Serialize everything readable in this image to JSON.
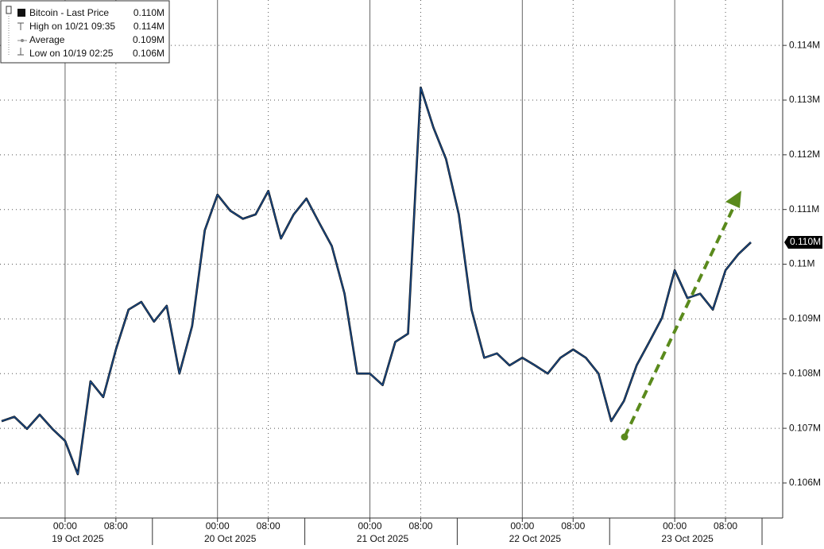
{
  "chart_data": {
    "type": "line",
    "legend": [
      {
        "label": "Bitcoin - Last Price",
        "value": "0.110M"
      },
      {
        "label": "High on 10/21 09:35",
        "value": "0.114M"
      },
      {
        "label": "Average",
        "value": "0.109M"
      },
      {
        "label": "Low on 10/19 02:25",
        "value": "0.106M"
      }
    ],
    "last_price_label": "0.110M",
    "x": [
      "2025-10-18T14:00",
      "2025-10-18T16:00",
      "2025-10-18T18:00",
      "2025-10-18T20:00",
      "2025-10-18T22:00",
      "2025-10-19T00:00",
      "2025-10-19T02:00",
      "2025-10-19T04:00",
      "2025-10-19T06:00",
      "2025-10-19T08:00",
      "2025-10-19T10:00",
      "2025-10-19T12:00",
      "2025-10-19T14:00",
      "2025-10-19T16:00",
      "2025-10-19T18:00",
      "2025-10-19T20:00",
      "2025-10-19T22:00",
      "2025-10-20T00:00",
      "2025-10-20T02:00",
      "2025-10-20T04:00",
      "2025-10-20T06:00",
      "2025-10-20T08:00",
      "2025-10-20T10:00",
      "2025-10-20T12:00",
      "2025-10-20T14:00",
      "2025-10-20T16:00",
      "2025-10-20T18:00",
      "2025-10-20T20:00",
      "2025-10-20T22:00",
      "2025-10-21T00:00",
      "2025-10-21T02:00",
      "2025-10-21T04:00",
      "2025-10-21T06:00",
      "2025-10-21T08:00",
      "2025-10-21T10:00",
      "2025-10-21T12:00",
      "2025-10-21T14:00",
      "2025-10-21T16:00",
      "2025-10-21T18:00",
      "2025-10-21T20:00",
      "2025-10-21T22:00",
      "2025-10-22T00:00",
      "2025-10-22T02:00",
      "2025-10-22T04:00",
      "2025-10-22T06:00",
      "2025-10-22T08:00",
      "2025-10-22T10:00",
      "2025-10-22T12:00",
      "2025-10-22T14:00",
      "2025-10-22T16:00",
      "2025-10-22T18:00",
      "2025-10-22T20:00",
      "2025-10-22T22:00",
      "2025-10-23T00:00",
      "2025-10-23T02:00",
      "2025-10-23T04:00",
      "2025-10-23T06:00",
      "2025-10-23T08:00",
      "2025-10-23T10:00",
      "2025-10-23T12:00"
    ],
    "series": [
      {
        "name": "Bitcoin - Last Price",
        "color": "#1d4f8f",
        "values": [
          0.10713,
          0.10721,
          0.10699,
          0.10725,
          0.10699,
          0.10677,
          0.10616,
          0.10786,
          0.10757,
          0.10844,
          0.10917,
          0.10931,
          0.10895,
          0.10924,
          0.108,
          0.10887,
          0.11062,
          0.11127,
          0.11098,
          0.11083,
          0.11091,
          0.11134,
          0.11047,
          0.11091,
          0.1112,
          0.11076,
          0.11033,
          0.10946,
          0.108,
          0.108,
          0.10779,
          0.10858,
          0.10873,
          0.11323,
          0.1125,
          0.11192,
          0.11091,
          0.10917,
          0.10829,
          0.10837,
          0.10815,
          0.10829,
          0.10815,
          0.108,
          0.10829,
          0.10844,
          0.10829,
          0.108,
          0.10713,
          0.1075,
          0.10815,
          0.10858,
          0.10902,
          0.10989,
          0.10938,
          0.10946,
          0.10917,
          0.10989,
          0.11018,
          0.1104
        ]
      }
    ],
    "xlim": [
      "2025-10-18T13:45",
      "2025-10-23T17:00"
    ],
    "xticks": [
      {
        "value": "2025-10-19T00:00",
        "label": "00:00"
      },
      {
        "value": "2025-10-19T08:00",
        "label": "08:00"
      },
      {
        "value": "2025-10-20T00:00",
        "label": "00:00"
      },
      {
        "value": "2025-10-20T08:00",
        "label": "08:00"
      },
      {
        "value": "2025-10-21T00:00",
        "label": "00:00"
      },
      {
        "value": "2025-10-21T08:00",
        "label": "08:00"
      },
      {
        "value": "2025-10-22T00:00",
        "label": "00:00"
      },
      {
        "value": "2025-10-22T08:00",
        "label": "08:00"
      },
      {
        "value": "2025-10-23T00:00",
        "label": "00:00"
      },
      {
        "value": "2025-10-23T08:00",
        "label": "08:00"
      }
    ],
    "day_labels": [
      {
        "value": "2025-10-19",
        "label": "19 Oct 2025"
      },
      {
        "value": "2025-10-20",
        "label": "20 Oct 2025"
      },
      {
        "value": "2025-10-21",
        "label": "21 Oct 2025"
      },
      {
        "value": "2025-10-22",
        "label": "22 Oct 2025"
      },
      {
        "value": "2025-10-23",
        "label": "23 Oct 2025"
      }
    ],
    "ylim": [
      0.10536,
      0.11483
    ],
    "yticks": [
      {
        "value": 0.106,
        "label": "0.106M"
      },
      {
        "value": 0.107,
        "label": "0.107M"
      },
      {
        "value": 0.108,
        "label": "0.108M"
      },
      {
        "value": 0.109,
        "label": "0.109M"
      },
      {
        "value": 0.11,
        "label": "0.11M"
      },
      {
        "value": 0.111,
        "label": "0.111M"
      },
      {
        "value": 0.112,
        "label": "0.112M"
      },
      {
        "value": 0.113,
        "label": "0.113M"
      },
      {
        "value": 0.114,
        "label": "0.114M"
      }
    ],
    "grid": true
  }
}
